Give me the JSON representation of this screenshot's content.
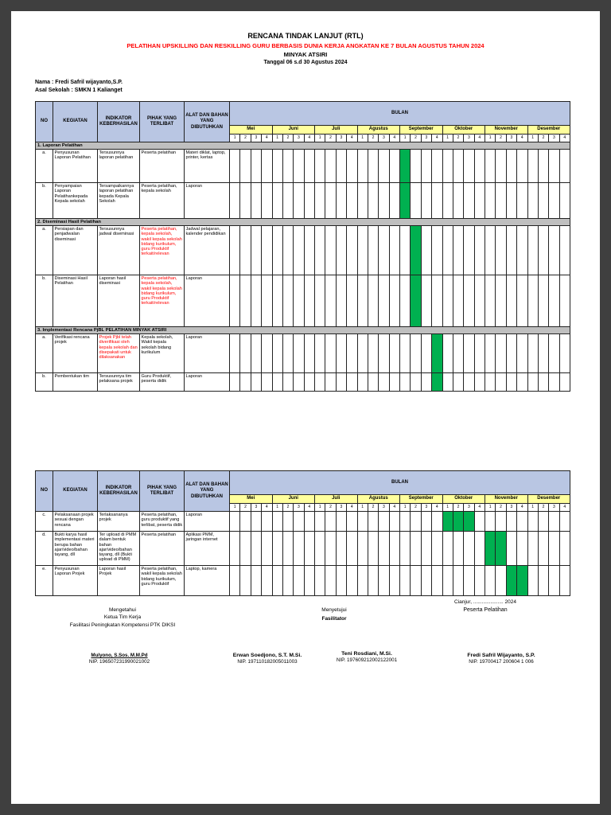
{
  "document": {
    "title": "RENCANA TINDAK LANJUT (RTL)",
    "subtitle": "PELATIHAN UPSKILLING DAN RESKILLING GURU BERBASIS DUNIA KERJA ANGKATAN KE 7 BULAN AGUSTUS TAHUN 2024",
    "topic": "MINYAK ATSIRI",
    "date_range": "Tanggal 06 s.d 30 Agustus 2024",
    "name_line": "Nama : Fredi Safril wijayanto,S.P.",
    "school_line": "Asal Sekolah : SMKN 1 Kalianget"
  },
  "gantt": {
    "col_headers": [
      "NO",
      "KEGIATAN",
      "INDIKATOR KEBERHASILAN",
      "PIHAK YANG TERLIBAT",
      "ALAT DAN BAHAN YANG DIBUTUHKAN"
    ],
    "bulan_label": "BULAN",
    "months": [
      "Mei",
      "Juni",
      "Juli",
      "Agustus",
      "September",
      "Oktober",
      "November",
      "Desember"
    ],
    "week_labels": [
      "1",
      "2",
      "3",
      "4"
    ]
  },
  "table1": {
    "groups": [
      {
        "section": "1. Laporan Pelatihan",
        "rows": [
          {
            "no": "a.",
            "kegiatan": "Penyusunan Laporan Pelatihan",
            "indikator": "Tersusunnya laporan pelatihan",
            "pihak": "Peserta pelatihan",
            "alat": "Materi diklat, laptop, printer, kertas",
            "red": [],
            "green_weeks": [
              16
            ]
          },
          {
            "no": "b.",
            "kegiatan": "Penyampaian Laporan Pelatihankepada Kepala sekolah",
            "indikator": "Tersampaikannya laporan pelatihan kepada Kepala Sekolah",
            "pihak": "Peserta pelatihan, kepala sekolah",
            "alat": "Laporan",
            "red": [],
            "green_weeks": [
              16
            ]
          }
        ]
      },
      {
        "section": "2. Diseminasi Hasil Pelatihan",
        "rows": [
          {
            "no": "a.",
            "kegiatan": "Persiapan dan penjadwalan diseminasi",
            "indikator": "Tersusunnya jadwal diseminasi",
            "pihak": "Peserta pelatihan, kepala sekolah, wakil kepala sekolah bidang kurikulum, guru Produktif terkait/relevan",
            "alat": "Jadwal pelajaran, kalender pendidikan",
            "red": [
              "pihak"
            ],
            "green_weeks": [
              17
            ]
          },
          {
            "no": "b.",
            "kegiatan": "Diseminasi Hasil Pelatihan",
            "indikator": "Laporan hasil diseminasi",
            "pihak": "Peserta pelatihan, kepala sekolah, wakil kepala sekolah bidang kurikulum, guru Produktif terkait/relevan",
            "alat": "Laporan",
            "red": [
              "pihak"
            ],
            "green_weeks": [
              17
            ]
          }
        ]
      },
      {
        "section": "3. Implementasi Rencana PjBL PELATIHAN MINYAK ATSIRI",
        "rows": [
          {
            "no": "a.",
            "kegiatan": "Verifikasi rencana projek",
            "indikator": "Projek Pjbl telah diverifikasi oleh kepala sekolah dan disepakati untuk dilaksanakan",
            "pihak": "Kepala sekolah, Wakil kepala sekolah bidang kurikulum",
            "alat": "Laporan",
            "red": [
              "indikator"
            ],
            "green_weeks": [
              19
            ]
          },
          {
            "no": "b.",
            "kegiatan": "Pembentukan tim",
            "indikator": "Tersusunnya tim pelaksana projek",
            "pihak": "Guru Produktif, peserta didik",
            "alat": "Laporan",
            "red": [],
            "green_weeks": [
              19
            ]
          }
        ]
      }
    ]
  },
  "table2": {
    "groups": [
      {
        "section": null,
        "rows": [
          {
            "no": "c.",
            "kegiatan": "Pelaksanaan projek sesuai dengan rencana",
            "indikator": "Terlaksananya projek",
            "pihak": "Peserta pelatihan, guru produktif yang terlibat, peserta didik",
            "alat": "Laporan",
            "red": [],
            "green_weeks": [
              20,
              21,
              22
            ]
          },
          {
            "no": "d.",
            "kegiatan": "Bukti karya hasil implementasi materi berupa bahan ajar/video/bahan tayang, dll",
            "indikator": "Ter upload di PMM dalam bentuk bahan ajar/video/bahan tayang, dll (Bukti upload di PMM)",
            "pihak": "Peserta pelatihan",
            "alat": "Aplikasi PMM, jaringan internet",
            "red": [],
            "green_weeks": [
              24,
              25
            ]
          },
          {
            "no": "e.",
            "kegiatan": "Penyusunan Laporan Projek",
            "indikator": "Laporan hasil Projek",
            "pihak": "Peserta pelatihan, wakil kepala sekolah bidang kurikulum, guru Produktif",
            "alat": "Laptop, kamera",
            "red": [],
            "green_weeks": [
              26,
              27
            ]
          }
        ]
      }
    ]
  },
  "footer": {
    "place_date": "Cianjur, ..................... 2024",
    "left_block": [
      "Mengetahui",
      "Ketua Tim Kerja",
      "Fasilitasi Peningkatan Kompetensi PTK DIKSI"
    ],
    "mid_block": [
      "Menyetujui",
      "Fasilitator"
    ],
    "right_block": "Peserta Pelatihan",
    "signers": [
      {
        "name": "Mulyono, S.Sos. M.M.Pd",
        "nip": "NIP. 196507231990021002"
      },
      {
        "name": "Erwan Soedjono, S.T. M.Si.",
        "nip": "NIP. 197110182005011003"
      },
      {
        "name": "Teni Rosdiani, M.Si.",
        "nip": "NIP. 197609212002122001"
      },
      {
        "name": "Fredi Safril Wijayanto, S.P.",
        "nip": "NIP. 19700417 200604 1 006"
      }
    ]
  },
  "colors": {
    "viewer-bg": "#3f3f3f",
    "header-blue": "#b9c6e3",
    "month-yellow": "#ffff9c",
    "section-gray": "#bfbfbf",
    "gantt-green": "#00b050",
    "accent-red": "#ff0000"
  }
}
